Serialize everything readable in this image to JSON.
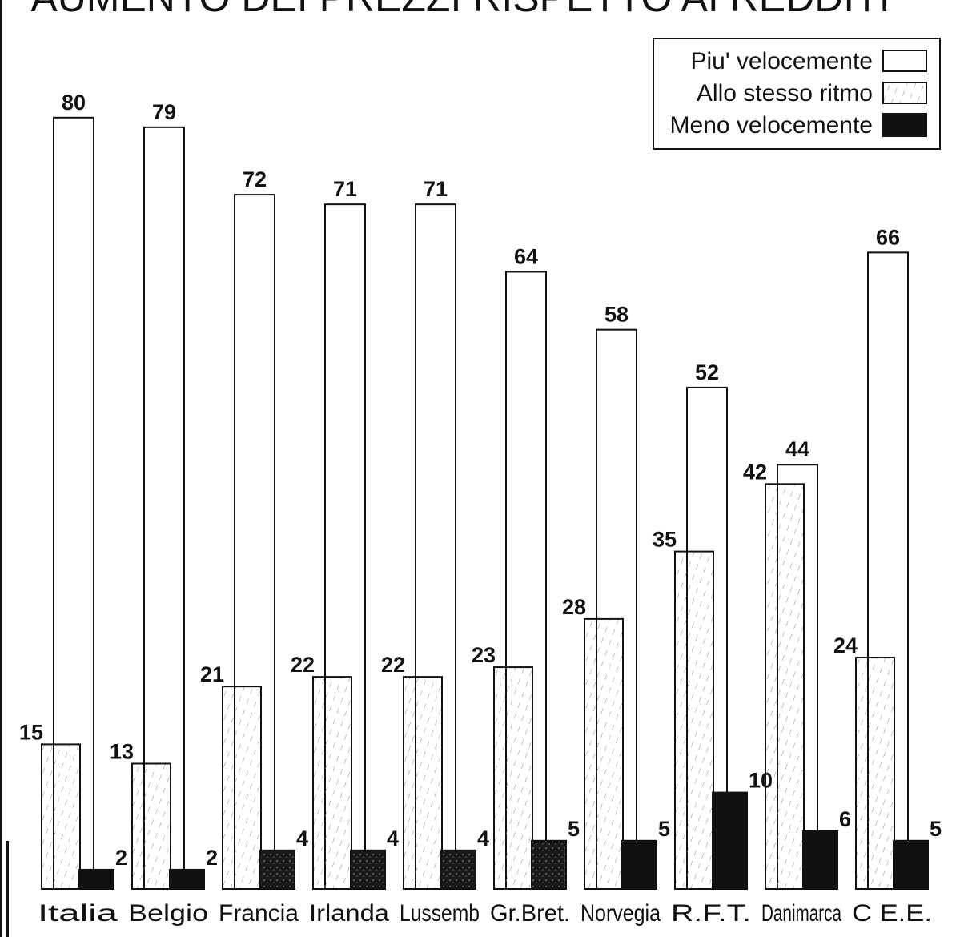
{
  "chart_data": {
    "type": "bar",
    "title": "AUMENTO DEI PREZZI RISPETTO AI REDDITI",
    "categories": [
      "Italia",
      "Belgio",
      "Francia",
      "Irlanda",
      "Lussemb",
      "Gr.Bret.",
      "Norvegia",
      "R.F.T.",
      "Danimarca",
      "C E.E."
    ],
    "series": [
      {
        "name": "Piu' velocemente",
        "values": [
          80,
          79,
          72,
          71,
          71,
          64,
          58,
          52,
          44,
          66
        ]
      },
      {
        "name": "Allo stesso ritmo",
        "values": [
          15,
          13,
          21,
          22,
          22,
          23,
          28,
          35,
          42,
          24
        ]
      },
      {
        "name": "Meno velocemente",
        "values": [
          2,
          2,
          4,
          4,
          4,
          5,
          5,
          10,
          6,
          5
        ]
      }
    ],
    "legend_position": "top-right",
    "ylim": [
      0,
      80
    ],
    "grid": false
  },
  "legend": {
    "items": [
      {
        "label": "Piu' velocemente",
        "swatch": "empty"
      },
      {
        "label": "Allo stesso ritmo",
        "swatch": "hatched"
      },
      {
        "label": "Meno velocemente",
        "swatch": "filled"
      }
    ]
  },
  "colors": {
    "ink": "#111111",
    "paper": "#ffffff",
    "hatch": "#888888"
  }
}
